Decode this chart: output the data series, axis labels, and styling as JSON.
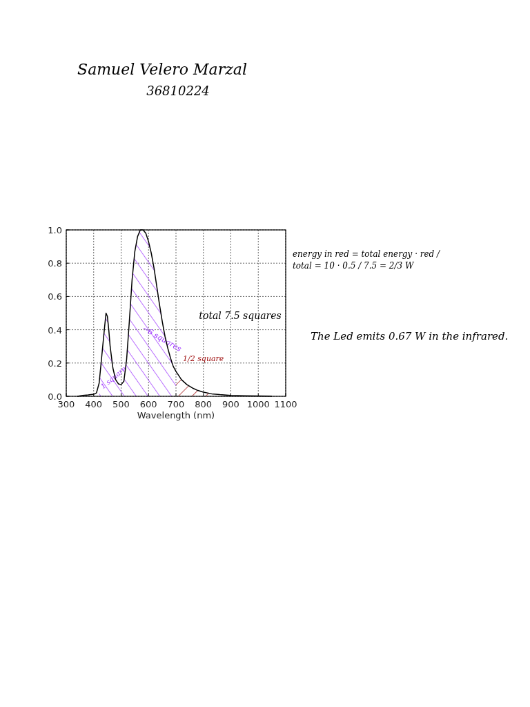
{
  "chart_data": {
    "type": "line",
    "xlabel": "Wavelength (nm)",
    "x": [
      340,
      360,
      380,
      400,
      410,
      420,
      430,
      440,
      445,
      450,
      455,
      460,
      470,
      480,
      490,
      500,
      510,
      520,
      530,
      540,
      550,
      560,
      570,
      580,
      590,
      600,
      610,
      620,
      630,
      640,
      650,
      660,
      670,
      680,
      690,
      700,
      720,
      740,
      760,
      780,
      800,
      830,
      860,
      900,
      950,
      1000,
      1050
    ],
    "series": [
      {
        "color": "#000000",
        "values": [
          0,
          0.005,
          0.008,
          0.012,
          0.02,
          0.08,
          0.25,
          0.42,
          0.5,
          0.48,
          0.4,
          0.3,
          0.17,
          0.1,
          0.075,
          0.07,
          0.09,
          0.22,
          0.45,
          0.7,
          0.87,
          0.96,
          1.0,
          1.0,
          0.98,
          0.93,
          0.86,
          0.77,
          0.66,
          0.55,
          0.45,
          0.36,
          0.29,
          0.23,
          0.18,
          0.15,
          0.1,
          0.07,
          0.05,
          0.035,
          0.025,
          0.015,
          0.01,
          0.005,
          0.003,
          0.002,
          0.001
        ]
      }
    ],
    "xlim": [
      300,
      1100
    ],
    "xticks": [
      300,
      400,
      500,
      600,
      700,
      800,
      900,
      1000,
      1100
    ],
    "ylim": [
      0,
      1.0
    ],
    "yticks": [
      {
        "value": 0,
        "label": "0.0"
      },
      0.2,
      0.4,
      0.6,
      0.8,
      {
        "value": 1,
        "label": "1.0"
      }
    ],
    "grid": true,
    "line_style": "solid",
    "marker": "none",
    "bands": [
      {
        "axis": "x",
        "from": 420,
        "to": 510,
        "label": "1 square",
        "color": "#9b30ff"
      },
      {
        "axis": "x",
        "from": 510,
        "to": 700,
        "label": "~6 squares",
        "color": "#9b30ff"
      },
      {
        "axis": "x",
        "from": 700,
        "to": 830,
        "label": "1/2 square",
        "color": "#a01010"
      }
    ],
    "annotations": [
      "Samuel Velero Marzal",
      "36810224",
      "total 7.5 squares",
      "energy in red = total energy · red / total = 10 · 0.5 / 7.5 = 2/3 W",
      "The Led emits 0.67 W in the infrared."
    ]
  }
}
